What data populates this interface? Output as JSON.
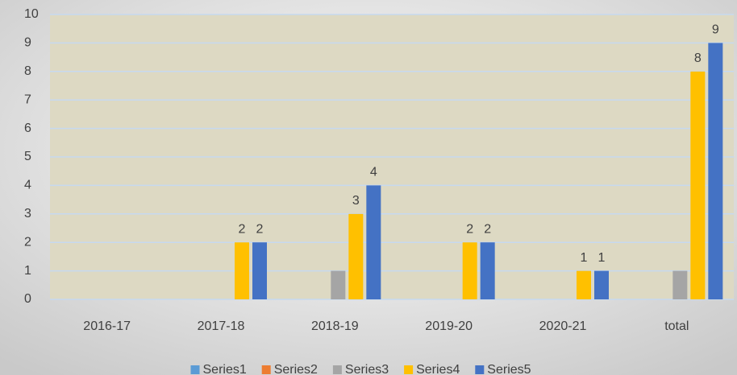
{
  "chart_data": {
    "type": "bar",
    "categories": [
      "2016-17",
      "2017-18",
      "2018-19",
      "2019-20",
      "2020-21",
      "total"
    ],
    "series": [
      {
        "name": "Series1",
        "color": "#5b9bd5",
        "values": [
          null,
          null,
          null,
          null,
          null,
          null
        ]
      },
      {
        "name": "Series2",
        "color": "#ed7d31",
        "values": [
          null,
          null,
          null,
          null,
          null,
          null
        ]
      },
      {
        "name": "Series3",
        "color": "#a5a5a5",
        "values": [
          null,
          null,
          1,
          null,
          null,
          1
        ]
      },
      {
        "name": "Series4",
        "color": "#ffc000",
        "values": [
          null,
          2,
          3,
          2,
          1,
          8
        ],
        "data_labels": true
      },
      {
        "name": "Series5",
        "color": "#4472c4",
        "values": [
          null,
          2,
          4,
          2,
          1,
          9
        ],
        "data_labels": true
      }
    ],
    "ylim": [
      0,
      10
    ],
    "yticks": [
      0,
      1,
      2,
      3,
      4,
      5,
      6,
      7,
      8,
      9,
      10
    ],
    "grid": true,
    "legend": "bottom"
  }
}
